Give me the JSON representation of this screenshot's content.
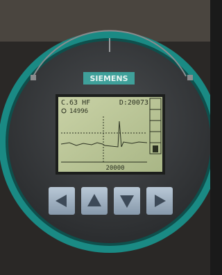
{
  "brand": "SIEMENS",
  "screen": {
    "header_left": "C.63 HF",
    "header_right": "D:20073",
    "reading": "14996",
    "axis_label": "20000"
  }
}
